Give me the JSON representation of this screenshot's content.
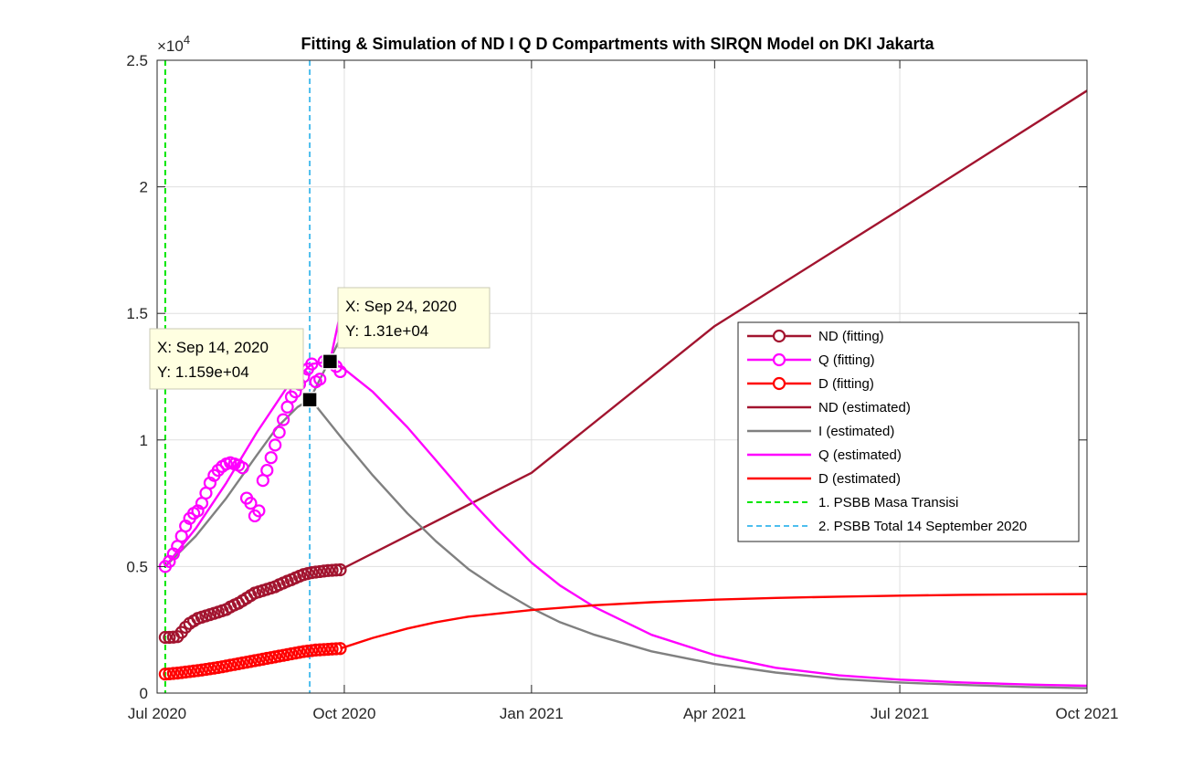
{
  "chart_data": {
    "type": "line",
    "title": "Fitting & Simulation of  ND I Q D Compartments with SIRQN Model on DKI Jakarta",
    "y_exponent_label": "×10",
    "y_exponent": "4",
    "xlim": [
      "2020-07-01",
      "2021-10-01"
    ],
    "ylim": [
      0,
      25000
    ],
    "grid": true,
    "legend_position": "right",
    "x_ticks": [
      {
        "date": "2020-07-01",
        "label": "Jul 2020"
      },
      {
        "date": "2020-10-01",
        "label": "Oct 2020"
      },
      {
        "date": "2021-01-01",
        "label": "Jan 2021"
      },
      {
        "date": "2021-04-01",
        "label": "Apr 2021"
      },
      {
        "date": "2021-07-01",
        "label": "Jul 2021"
      },
      {
        "date": "2021-10-01",
        "label": "Oct 2021"
      }
    ],
    "y_ticks": [
      {
        "value": 0,
        "label": "0"
      },
      {
        "value": 5000,
        "label": "0.5"
      },
      {
        "value": 10000,
        "label": "1"
      },
      {
        "value": 15000,
        "label": "1.5"
      },
      {
        "value": 20000,
        "label": "2"
      },
      {
        "value": 25000,
        "label": "2.5"
      }
    ],
    "series": [
      {
        "name": "ND (fitting)",
        "kind": "markers",
        "color": "#A2142F",
        "points": [
          [
            "2020-07-05",
            2200
          ],
          [
            "2020-07-07",
            2200
          ],
          [
            "2020-07-09",
            2210
          ],
          [
            "2020-07-11",
            2230
          ],
          [
            "2020-07-13",
            2400
          ],
          [
            "2020-07-15",
            2600
          ],
          [
            "2020-07-17",
            2750
          ],
          [
            "2020-07-19",
            2850
          ],
          [
            "2020-07-21",
            2950
          ],
          [
            "2020-07-23",
            3000
          ],
          [
            "2020-07-25",
            3050
          ],
          [
            "2020-07-27",
            3100
          ],
          [
            "2020-07-29",
            3150
          ],
          [
            "2020-07-31",
            3200
          ],
          [
            "2020-08-02",
            3250
          ],
          [
            "2020-08-04",
            3300
          ],
          [
            "2020-08-06",
            3400
          ],
          [
            "2020-08-08",
            3480
          ],
          [
            "2020-08-10",
            3550
          ],
          [
            "2020-08-12",
            3650
          ],
          [
            "2020-08-14",
            3750
          ],
          [
            "2020-08-16",
            3850
          ],
          [
            "2020-08-18",
            3950
          ],
          [
            "2020-08-20",
            4000
          ],
          [
            "2020-08-22",
            4050
          ],
          [
            "2020-08-24",
            4100
          ],
          [
            "2020-08-26",
            4150
          ],
          [
            "2020-08-28",
            4200
          ],
          [
            "2020-08-30",
            4280
          ],
          [
            "2020-09-01",
            4350
          ],
          [
            "2020-09-03",
            4420
          ],
          [
            "2020-09-05",
            4480
          ],
          [
            "2020-09-07",
            4550
          ],
          [
            "2020-09-09",
            4620
          ],
          [
            "2020-09-11",
            4680
          ],
          [
            "2020-09-13",
            4720
          ],
          [
            "2020-09-15",
            4760
          ],
          [
            "2020-09-17",
            4780
          ],
          [
            "2020-09-19",
            4800
          ],
          [
            "2020-09-21",
            4820
          ],
          [
            "2020-09-23",
            4840
          ],
          [
            "2020-09-25",
            4850
          ],
          [
            "2020-09-27",
            4860
          ],
          [
            "2020-09-29",
            4870
          ]
        ]
      },
      {
        "name": "Q (fitting)",
        "kind": "markers",
        "color": "#FF00FF",
        "points": [
          [
            "2020-07-05",
            5000
          ],
          [
            "2020-07-07",
            5200
          ],
          [
            "2020-07-09",
            5500
          ],
          [
            "2020-07-11",
            5800
          ],
          [
            "2020-07-13",
            6200
          ],
          [
            "2020-07-15",
            6600
          ],
          [
            "2020-07-17",
            6900
          ],
          [
            "2020-07-19",
            7100
          ],
          [
            "2020-07-21",
            7200
          ],
          [
            "2020-07-23",
            7500
          ],
          [
            "2020-07-25",
            7900
          ],
          [
            "2020-07-27",
            8300
          ],
          [
            "2020-07-29",
            8600
          ],
          [
            "2020-07-31",
            8800
          ],
          [
            "2020-08-02",
            8950
          ],
          [
            "2020-08-04",
            9050
          ],
          [
            "2020-08-06",
            9100
          ],
          [
            "2020-08-08",
            9050
          ],
          [
            "2020-08-10",
            9000
          ],
          [
            "2020-08-12",
            8900
          ],
          [
            "2020-08-14",
            7700
          ],
          [
            "2020-08-16",
            7500
          ],
          [
            "2020-08-18",
            7000
          ],
          [
            "2020-08-20",
            7200
          ],
          [
            "2020-08-22",
            8400
          ],
          [
            "2020-08-24",
            8800
          ],
          [
            "2020-08-26",
            9300
          ],
          [
            "2020-08-28",
            9800
          ],
          [
            "2020-08-30",
            10300
          ],
          [
            "2020-09-01",
            10800
          ],
          [
            "2020-09-03",
            11300
          ],
          [
            "2020-09-05",
            11700
          ],
          [
            "2020-09-07",
            11900
          ],
          [
            "2020-09-09",
            12200
          ],
          [
            "2020-09-11",
            12500
          ],
          [
            "2020-09-13",
            12800
          ],
          [
            "2020-09-15",
            13000
          ],
          [
            "2020-09-17",
            12300
          ],
          [
            "2020-09-19",
            12400
          ],
          [
            "2020-09-21",
            13100
          ],
          [
            "2020-09-23",
            13150
          ],
          [
            "2020-09-25",
            13050
          ],
          [
            "2020-09-27",
            12900
          ],
          [
            "2020-09-29",
            12700
          ]
        ]
      },
      {
        "name": "D (fitting)",
        "kind": "markers",
        "color": "#FF0000",
        "points": [
          [
            "2020-07-05",
            750
          ],
          [
            "2020-07-07",
            760
          ],
          [
            "2020-07-09",
            775
          ],
          [
            "2020-07-11",
            790
          ],
          [
            "2020-07-13",
            810
          ],
          [
            "2020-07-15",
            830
          ],
          [
            "2020-07-17",
            850
          ],
          [
            "2020-07-19",
            870
          ],
          [
            "2020-07-21",
            890
          ],
          [
            "2020-07-23",
            910
          ],
          [
            "2020-07-25",
            935
          ],
          [
            "2020-07-27",
            960
          ],
          [
            "2020-07-29",
            985
          ],
          [
            "2020-07-31",
            1010
          ],
          [
            "2020-08-02",
            1040
          ],
          [
            "2020-08-04",
            1070
          ],
          [
            "2020-08-06",
            1100
          ],
          [
            "2020-08-08",
            1130
          ],
          [
            "2020-08-10",
            1160
          ],
          [
            "2020-08-12",
            1190
          ],
          [
            "2020-08-14",
            1220
          ],
          [
            "2020-08-16",
            1250
          ],
          [
            "2020-08-18",
            1280
          ],
          [
            "2020-08-20",
            1310
          ],
          [
            "2020-08-22",
            1340
          ],
          [
            "2020-08-24",
            1370
          ],
          [
            "2020-08-26",
            1400
          ],
          [
            "2020-08-28",
            1430
          ],
          [
            "2020-08-30",
            1460
          ],
          [
            "2020-09-01",
            1490
          ],
          [
            "2020-09-03",
            1520
          ],
          [
            "2020-09-05",
            1550
          ],
          [
            "2020-09-07",
            1580
          ],
          [
            "2020-09-09",
            1610
          ],
          [
            "2020-09-11",
            1640
          ],
          [
            "2020-09-13",
            1660
          ],
          [
            "2020-09-15",
            1680
          ],
          [
            "2020-09-17",
            1700
          ],
          [
            "2020-09-19",
            1710
          ],
          [
            "2020-09-21",
            1720
          ],
          [
            "2020-09-23",
            1730
          ],
          [
            "2020-09-25",
            1740
          ],
          [
            "2020-09-27",
            1750
          ],
          [
            "2020-09-29",
            1760
          ]
        ]
      },
      {
        "name": "ND (estimated)",
        "kind": "line",
        "color": "#A2142F",
        "points": [
          [
            "2020-09-29",
            4870
          ],
          [
            "2021-01-01",
            8700
          ],
          [
            "2021-04-01",
            14500
          ],
          [
            "2021-07-01",
            19100
          ],
          [
            "2021-10-01",
            23800
          ]
        ]
      },
      {
        "name": "I (estimated)",
        "kind": "line",
        "color": "#808080",
        "points": [
          [
            "2020-07-05",
            5000
          ],
          [
            "2020-07-20",
            6200
          ],
          [
            "2020-08-04",
            7700
          ],
          [
            "2020-08-19",
            9400
          ],
          [
            "2020-08-29",
            10500
          ],
          [
            "2020-09-08",
            11300
          ],
          [
            "2020-09-14",
            11590
          ],
          [
            "2020-09-17",
            11350
          ],
          [
            "2020-10-01",
            9950
          ],
          [
            "2020-10-15",
            8600
          ],
          [
            "2020-11-01",
            7100
          ],
          [
            "2020-11-15",
            6000
          ],
          [
            "2020-12-01",
            4900
          ],
          [
            "2020-12-15",
            4150
          ],
          [
            "2021-01-01",
            3350
          ],
          [
            "2021-01-15",
            2800
          ],
          [
            "2021-02-01",
            2300
          ],
          [
            "2021-03-01",
            1650
          ],
          [
            "2021-04-01",
            1150
          ],
          [
            "2021-05-01",
            810
          ],
          [
            "2021-06-01",
            560
          ],
          [
            "2021-07-01",
            420
          ],
          [
            "2021-08-01",
            320
          ],
          [
            "2021-09-01",
            240
          ],
          [
            "2021-10-01",
            190
          ]
        ]
      },
      {
        "name": "I (estimated)",
        "kind": "line",
        "color": "#808080",
        "hide_legend": true,
        "points": [
          [
            "2020-09-14",
            11590
          ],
          [
            "2020-09-29",
            14000
          ]
        ]
      },
      {
        "name": "Q (estimated)",
        "kind": "line",
        "color": "#FF00FF",
        "points": [
          [
            "2020-07-05",
            5000
          ],
          [
            "2020-07-20",
            6500
          ],
          [
            "2020-08-04",
            8300
          ],
          [
            "2020-08-19",
            10300
          ],
          [
            "2020-09-03",
            12100
          ],
          [
            "2020-09-15",
            13000
          ],
          [
            "2020-09-24",
            13100
          ],
          [
            "2020-10-01",
            12800
          ],
          [
            "2020-10-15",
            11900
          ],
          [
            "2020-11-01",
            10500
          ],
          [
            "2020-11-15",
            9200
          ],
          [
            "2020-12-01",
            7700
          ],
          [
            "2020-12-15",
            6500
          ],
          [
            "2021-01-01",
            5150
          ],
          [
            "2021-01-15",
            4250
          ],
          [
            "2021-02-01",
            3400
          ],
          [
            "2021-03-01",
            2300
          ],
          [
            "2021-04-01",
            1500
          ],
          [
            "2021-05-01",
            1000
          ],
          [
            "2021-06-01",
            700
          ],
          [
            "2021-07-01",
            530
          ],
          [
            "2021-08-01",
            420
          ],
          [
            "2021-09-01",
            340
          ],
          [
            "2021-10-01",
            290
          ]
        ]
      },
      {
        "name": "Q (estimated)",
        "kind": "line",
        "color": "#FF00FF",
        "hide_legend": true,
        "points": [
          [
            "2020-09-24",
            13100
          ],
          [
            "2020-09-29",
            15000
          ]
        ]
      },
      {
        "name": "D (estimated)",
        "kind": "line",
        "color": "#FF0000",
        "points": [
          [
            "2020-09-29",
            1760
          ],
          [
            "2020-10-15",
            2180
          ],
          [
            "2020-11-01",
            2550
          ],
          [
            "2020-11-15",
            2800
          ],
          [
            "2020-12-01",
            3020
          ],
          [
            "2021-01-01",
            3280
          ],
          [
            "2021-02-01",
            3470
          ],
          [
            "2021-03-01",
            3590
          ],
          [
            "2021-04-01",
            3690
          ],
          [
            "2021-05-01",
            3760
          ],
          [
            "2021-06-01",
            3810
          ],
          [
            "2021-07-01",
            3850
          ],
          [
            "2021-08-01",
            3880
          ],
          [
            "2021-09-01",
            3900
          ],
          [
            "2021-10-01",
            3910
          ]
        ]
      }
    ],
    "vlines": [
      {
        "name": "1. PSBB Masa Transisi",
        "date": "2020-07-05",
        "color": "#00E600"
      },
      {
        "name": "2. PSBB Total 14 September 2020",
        "date": "2020-09-14",
        "color": "#4DBEEE"
      }
    ],
    "datatips": [
      {
        "date": "2020-09-14",
        "value": 11590,
        "line1": "X: Sep 14, 2020",
        "line2": "Y: 1.159e+04"
      },
      {
        "date": "2020-09-24",
        "value": 13100,
        "line1": "X: Sep 24, 2020",
        "line2": "Y: 1.31e+04"
      }
    ]
  }
}
